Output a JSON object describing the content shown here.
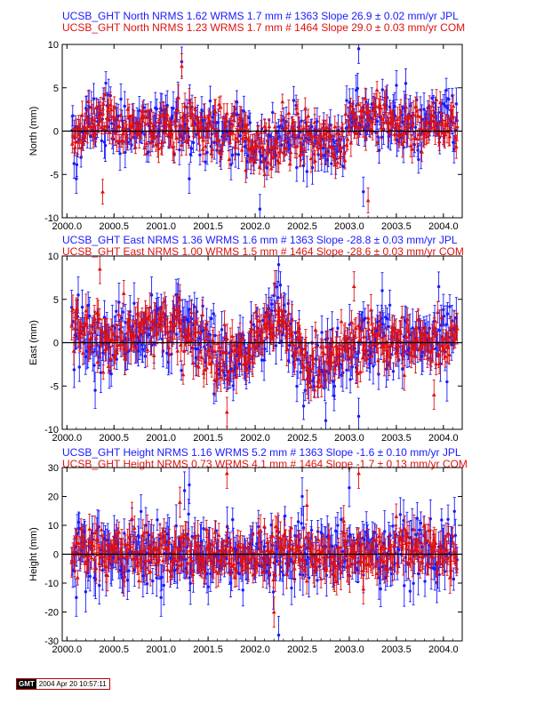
{
  "panels": [
    {
      "id": "north",
      "title_jpl": "UCSB_GHT North NRMS 1.62 WRMS  1.7 mm # 1363 Slope  26.9 ±  0.02 mm/yr JPL",
      "title_com": "UCSB_GHT North NRMS 1.23 WRMS  1.7 mm # 1464 Slope  29.0 ±  0.03 mm/yr COM"
    },
    {
      "id": "east",
      "title_jpl": "UCSB_GHT East NRMS 1.36 WRMS  1.6 mm # 1363 Slope  -28.8 ±  0.03 mm/yr JPL",
      "title_com": "UCSB_GHT East NRMS 1.00 WRMS  1.5 mm # 1464 Slope  -28.6 ±  0.03 mm/yr COM"
    },
    {
      "id": "height",
      "title_jpl": "UCSB_GHT Height NRMS 1.16 WRMS  5.2 mm # 1363 Slope   -1.6 ±  0.10 mm/yr JPL",
      "title_com": "UCSB_GHT Height NRMS 0.73 WRMS  4.1 mm # 1464 Slope   -1.7 ±  0.13 mm/yr COM"
    }
  ],
  "stamp": {
    "logo": "GMT",
    "date": "2004 Apr 20 10:57:11"
  },
  "colors": {
    "jpl": "#1a1aff",
    "com": "#e01010",
    "zero_line": "#000000"
  },
  "chart_data": [
    {
      "type": "scatter",
      "title": "UCSB_GHT North",
      "xlabel": "",
      "ylabel": "North (mm)",
      "xlim": [
        1999.95,
        2004.2
      ],
      "ylim": [
        -10,
        10
      ],
      "x_ticks": [
        2000.0,
        2000.5,
        2001.0,
        2001.5,
        2002.0,
        2002.5,
        2003.0,
        2003.5,
        2004.0
      ],
      "x_tick_labels": [
        "2000.0",
        "2000.5",
        "2001.0",
        "2001.5",
        "2002.0",
        "2002.5",
        "2003.0",
        "2003.5",
        "2004.0"
      ],
      "y_ticks": [
        -10,
        -5,
        0,
        5,
        10
      ],
      "y_tick_labels": [
        "-10",
        "-5",
        "0",
        "5",
        "10"
      ],
      "x_range": [
        2000.05,
        2004.15
      ],
      "series": [
        {
          "name": "JPL",
          "color": "#1a1aff",
          "marker": "circle",
          "errorbar": 1.3,
          "spread": 1.7,
          "anchors": [
            [
              2000.05,
              -1.8
            ],
            [
              2000.3,
              1.8
            ],
            [
              2000.6,
              0.4
            ],
            [
              2001.0,
              0.6
            ],
            [
              2001.3,
              1.2
            ],
            [
              2001.6,
              -0.5
            ],
            [
              2001.8,
              0.2
            ],
            [
              2002.0,
              -2.0
            ],
            [
              2002.3,
              -0.8
            ],
            [
              2002.6,
              -0.3
            ],
            [
              2002.9,
              -2.0
            ],
            [
              2003.05,
              2.0
            ],
            [
              2003.4,
              1.6
            ],
            [
              2003.7,
              0.3
            ],
            [
              2004.0,
              1.0
            ],
            [
              2004.15,
              1.2
            ]
          ],
          "outliers": [
            [
              2001.22,
              8.0
            ],
            [
              2001.3,
              -5.5
            ],
            [
              2002.05,
              -9.0
            ],
            [
              2003.1,
              9.5
            ],
            [
              2003.15,
              -7.0
            ],
            [
              2003.6,
              5.5
            ],
            [
              2000.1,
              -5.5
            ]
          ]
        },
        {
          "name": "COM",
          "color": "#e01010",
          "marker": "triangle",
          "errorbar": 1.1,
          "spread": 1.4,
          "anchors": [
            [
              2000.05,
              -1.5
            ],
            [
              2000.3,
              1.5
            ],
            [
              2000.6,
              0.3
            ],
            [
              2001.0,
              0.5
            ],
            [
              2001.3,
              1.0
            ],
            [
              2001.6,
              -0.4
            ],
            [
              2001.8,
              0.1
            ],
            [
              2002.0,
              -1.8
            ],
            [
              2002.3,
              -0.7
            ],
            [
              2002.6,
              -0.3
            ],
            [
              2002.9,
              -1.8
            ],
            [
              2003.05,
              1.8
            ],
            [
              2003.4,
              1.4
            ],
            [
              2003.7,
              0.2
            ],
            [
              2004.0,
              0.8
            ],
            [
              2004.15,
              1.0
            ]
          ],
          "outliers": [
            [
              2000.38,
              -7.0
            ],
            [
              2001.22,
              7.5
            ],
            [
              2003.2,
              -8.0
            ],
            [
              2002.1,
              -5.0
            ],
            [
              2001.9,
              -4.5
            ]
          ]
        }
      ],
      "zero_line": 0
    },
    {
      "type": "scatter",
      "title": "UCSB_GHT East",
      "xlabel": "",
      "ylabel": "East (mm)",
      "xlim": [
        1999.95,
        2004.2
      ],
      "ylim": [
        -10,
        10
      ],
      "x_ticks": [
        2000.0,
        2000.5,
        2001.0,
        2001.5,
        2002.0,
        2002.5,
        2003.0,
        2003.5,
        2004.0
      ],
      "x_tick_labels": [
        "2000.0",
        "2000.5",
        "2001.0",
        "2001.5",
        "2002.0",
        "2002.5",
        "2003.0",
        "2003.5",
        "2004.0"
      ],
      "y_ticks": [
        -10,
        -5,
        0,
        5,
        10
      ],
      "y_tick_labels": [
        "-10",
        "-5",
        "0",
        "5",
        "10"
      ],
      "x_range": [
        2000.05,
        2004.15
      ],
      "series": [
        {
          "name": "JPL",
          "color": "#1a1aff",
          "marker": "circle",
          "errorbar": 1.6,
          "spread": 2.0,
          "anchors": [
            [
              2000.05,
              2.0
            ],
            [
              2000.3,
              0.2
            ],
            [
              2000.6,
              1.0
            ],
            [
              2001.0,
              2.0
            ],
            [
              2001.3,
              1.5
            ],
            [
              2001.6,
              -1.5
            ],
            [
              2001.9,
              -1.5
            ],
            [
              2002.15,
              3.0
            ],
            [
              2002.3,
              2.0
            ],
            [
              2002.6,
              -2.5
            ],
            [
              2002.8,
              -2.0
            ],
            [
              2003.0,
              -0.3
            ],
            [
              2003.4,
              0.5
            ],
            [
              2003.7,
              -0.5
            ],
            [
              2004.0,
              0.5
            ],
            [
              2004.15,
              1.5
            ]
          ],
          "outliers": [
            [
              2000.12,
              5.5
            ],
            [
              2000.3,
              -5.5
            ],
            [
              2002.25,
              9.0
            ],
            [
              2002.75,
              -9.0
            ],
            [
              2003.1,
              -8.5
            ],
            [
              2000.9,
              5.5
            ],
            [
              2003.35,
              6.0
            ]
          ]
        },
        {
          "name": "COM",
          "color": "#e01010",
          "marker": "triangle",
          "errorbar": 1.3,
          "spread": 1.6,
          "anchors": [
            [
              2000.05,
              1.8
            ],
            [
              2000.3,
              0.2
            ],
            [
              2000.6,
              0.9
            ],
            [
              2001.0,
              1.8
            ],
            [
              2001.3,
              1.3
            ],
            [
              2001.6,
              -1.3
            ],
            [
              2001.9,
              -1.3
            ],
            [
              2002.15,
              2.6
            ],
            [
              2002.3,
              1.8
            ],
            [
              2002.6,
              -2.2
            ],
            [
              2002.8,
              -1.8
            ],
            [
              2003.0,
              -0.3
            ],
            [
              2003.4,
              0.4
            ],
            [
              2003.7,
              -0.4
            ],
            [
              2004.0,
              0.4
            ],
            [
              2004.15,
              1.3
            ]
          ],
          "outliers": [
            [
              2000.35,
              8.5
            ],
            [
              2001.7,
              -8.0
            ],
            [
              2003.05,
              6.5
            ],
            [
              2003.9,
              -6.0
            ],
            [
              2001.2,
              5.0
            ]
          ]
        }
      ],
      "zero_line": 0
    },
    {
      "type": "scatter",
      "title": "UCSB_GHT Height",
      "xlabel": "",
      "ylabel": "Height (mm)",
      "xlim": [
        1999.95,
        2004.2
      ],
      "ylim": [
        -30,
        30
      ],
      "x_ticks": [
        2000.0,
        2000.5,
        2001.0,
        2001.5,
        2002.0,
        2002.5,
        2003.0,
        2003.5,
        2004.0
      ],
      "x_tick_labels": [
        "2000.0",
        "2000.5",
        "2001.0",
        "2001.5",
        "2002.0",
        "2002.5",
        "2003.0",
        "2003.5",
        "2004.0"
      ],
      "y_ticks": [
        -30,
        -20,
        -10,
        0,
        10,
        20,
        30
      ],
      "y_tick_labels": [
        "-30",
        "-20",
        "-10",
        "0",
        "10",
        "20",
        "30"
      ],
      "x_range": [
        2000.05,
        2004.15
      ],
      "series": [
        {
          "name": "JPL",
          "color": "#1a1aff",
          "marker": "circle",
          "errorbar": 5.0,
          "spread": 5.5,
          "anchors": [
            [
              2000.05,
              2.0
            ],
            [
              2000.5,
              0.5
            ],
            [
              2001.0,
              1.0
            ],
            [
              2001.5,
              -0.5
            ],
            [
              2002.0,
              0.5
            ],
            [
              2002.5,
              0.0
            ],
            [
              2003.0,
              0.0
            ],
            [
              2003.5,
              2.0
            ],
            [
              2004.0,
              1.0
            ],
            [
              2004.15,
              0.0
            ]
          ],
          "outliers": [
            [
              2001.3,
              24.0
            ],
            [
              2001.25,
              22.0
            ],
            [
              2002.25,
              -28.0
            ],
            [
              2000.1,
              -15.0
            ],
            [
              2001.0,
              -15.0
            ],
            [
              2002.5,
              20.0
            ],
            [
              2003.0,
              23.0
            ]
          ]
        },
        {
          "name": "COM",
          "color": "#e01010",
          "marker": "triangle",
          "errorbar": 4.0,
          "spread": 4.3,
          "anchors": [
            [
              2000.05,
              1.5
            ],
            [
              2000.5,
              0.5
            ],
            [
              2001.0,
              1.0
            ],
            [
              2001.5,
              -0.5
            ],
            [
              2002.0,
              0.5
            ],
            [
              2002.5,
              0.0
            ],
            [
              2003.0,
              0.0
            ],
            [
              2003.5,
              1.5
            ],
            [
              2004.0,
              1.0
            ],
            [
              2004.15,
              0.0
            ]
          ],
          "outliers": [
            [
              2001.2,
              18.0
            ],
            [
              2001.7,
              28.0
            ],
            [
              2002.2,
              -20.0
            ],
            [
              2002.55,
              17.0
            ],
            [
              2003.1,
              28.0
            ],
            [
              2003.15,
              -12.0
            ]
          ]
        }
      ],
      "zero_line": 0
    }
  ]
}
